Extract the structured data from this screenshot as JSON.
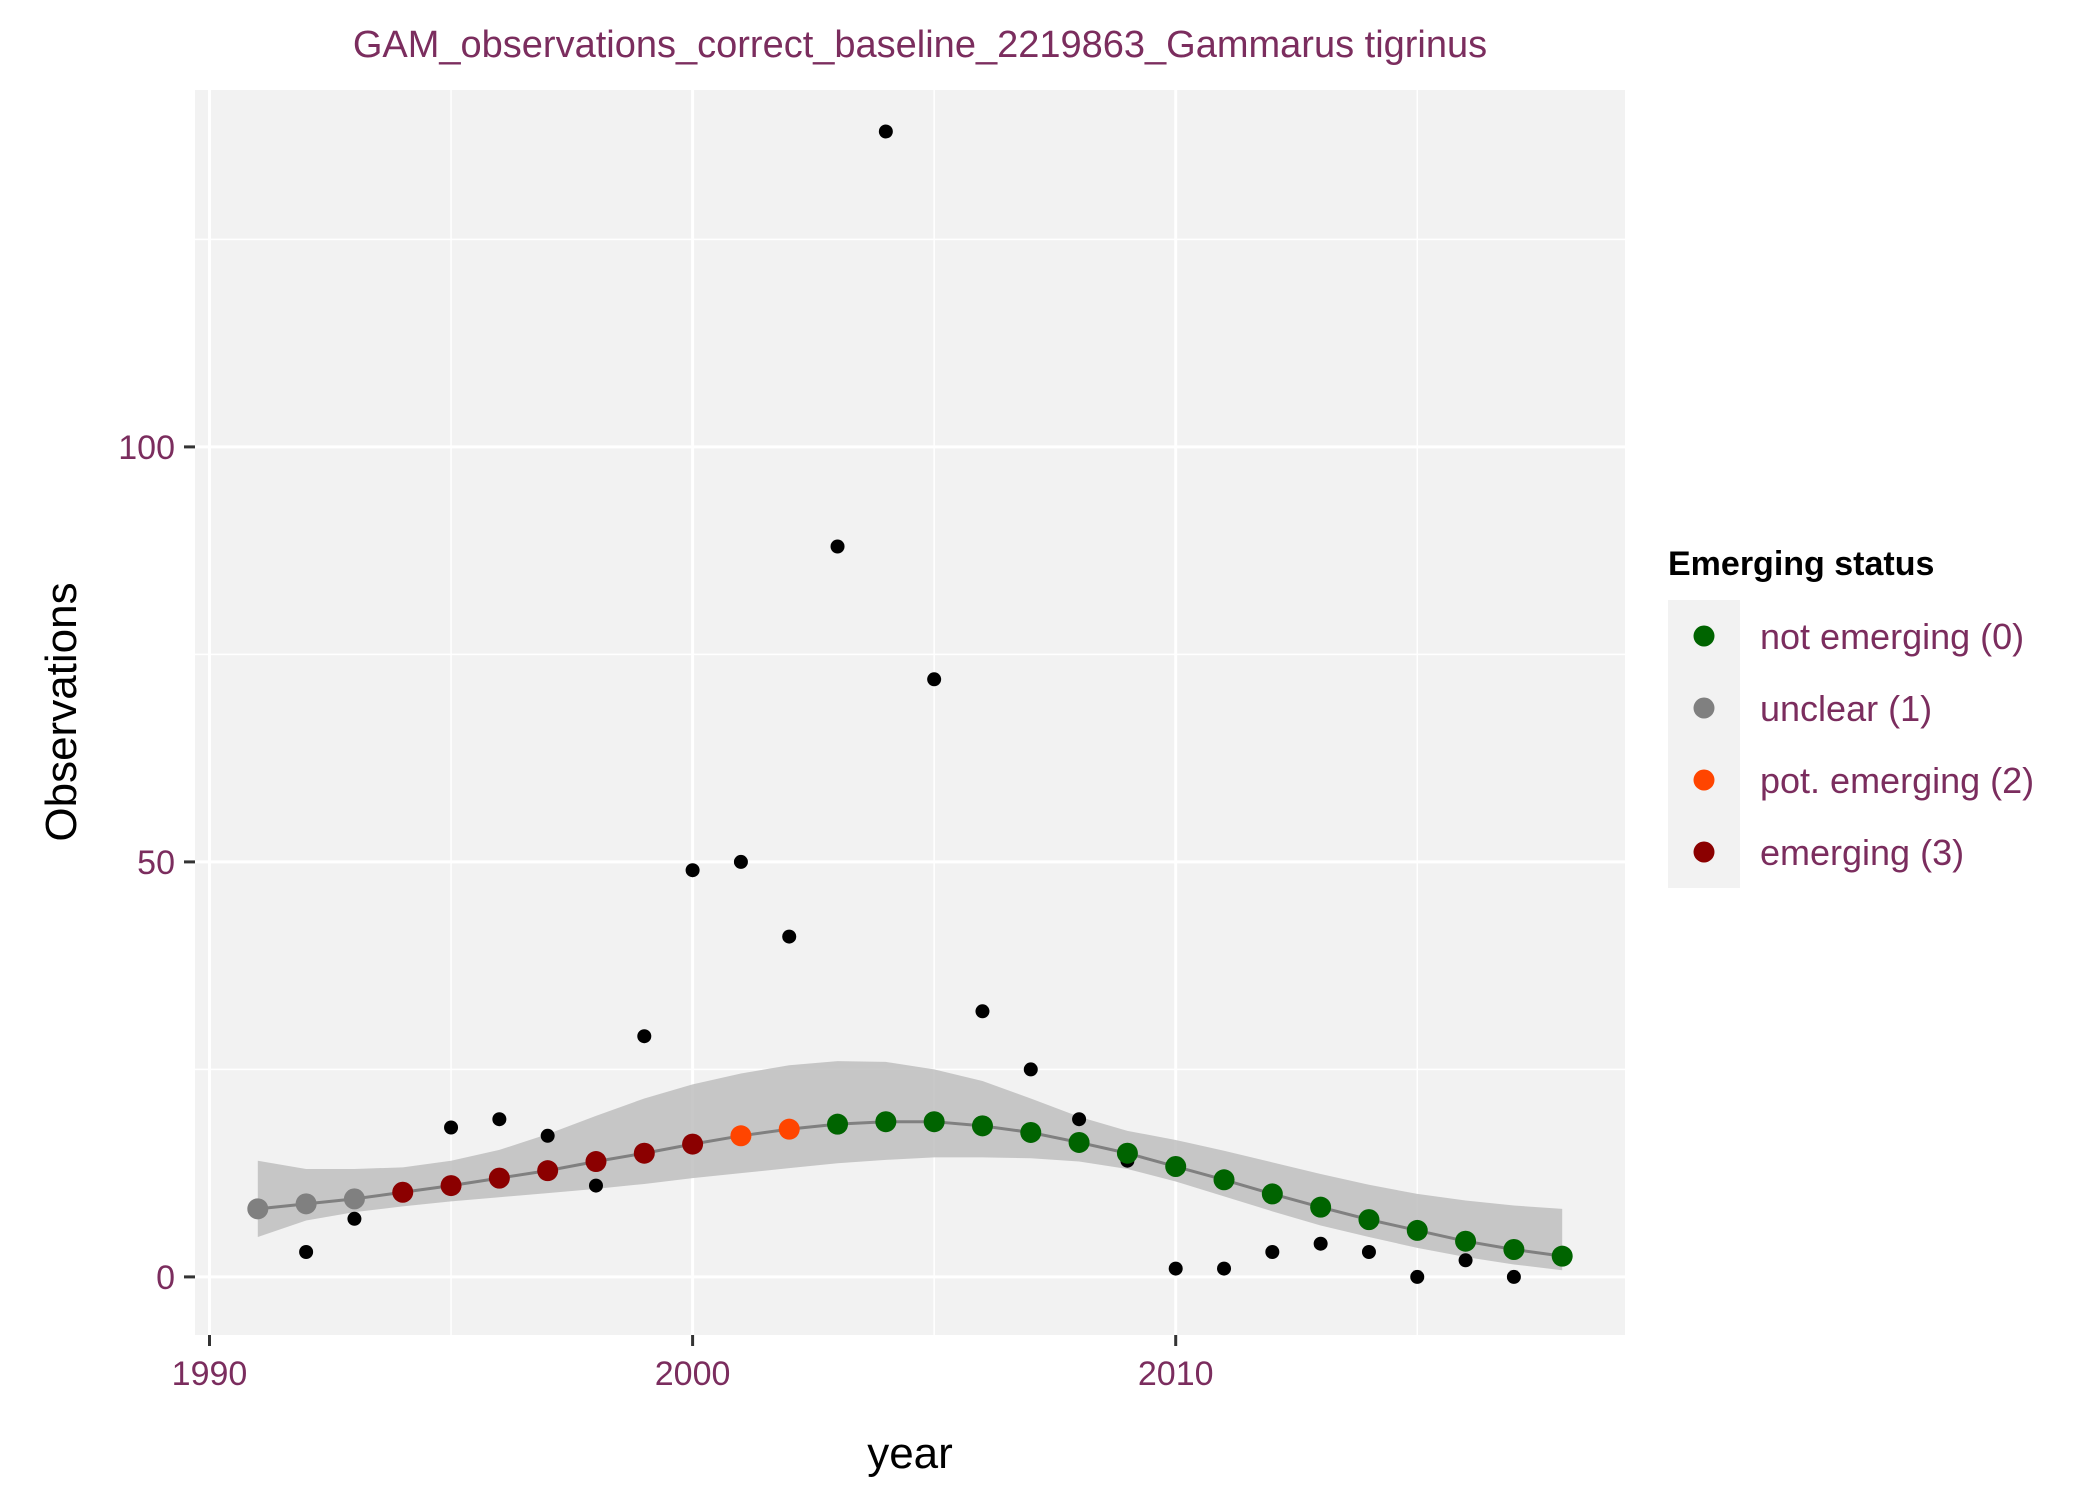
{
  "chart_data": {
    "type": "scatter",
    "title": "GAM_observations_correct_baseline_2219863_Gammarus tigrinus",
    "xlabel": "year",
    "ylabel": "Observations",
    "xlim": [
      1989.7,
      2019.3
    ],
    "ylim": [
      -7,
      143
    ],
    "x_ticks": [
      1990,
      2000,
      2010
    ],
    "x_minor": [
      1995,
      2005,
      2015
    ],
    "y_ticks": [
      0,
      50,
      100
    ],
    "y_minor": [
      25,
      75,
      125
    ],
    "grid": true,
    "legend_position": "right",
    "legend": {
      "title": "Emerging status",
      "entries": [
        {
          "label": "not emerging (0)",
          "color": "#006400"
        },
        {
          "label": "unclear (1)",
          "color": "#808080"
        },
        {
          "label": "pot. emerging (2)",
          "color": "#FF4500"
        },
        {
          "label": "emerging (3)",
          "color": "#8B0000"
        }
      ]
    },
    "status_colors": {
      "0": "#006400",
      "1": "#808080",
      "2": "#FF4500",
      "3": "#8B0000"
    },
    "observed_points": {
      "x": [
        1991,
        1992,
        1993,
        1994,
        1995,
        1996,
        1997,
        1998,
        1999,
        2000,
        2001,
        2002,
        2003,
        2004,
        2005,
        2006,
        2007,
        2008,
        2009,
        2010,
        2011,
        2012,
        2013,
        2014,
        2015,
        2016,
        2017
      ],
      "y": [
        8,
        3,
        7,
        10,
        18,
        19,
        17,
        11,
        29,
        49,
        50,
        41,
        88,
        138,
        72,
        32,
        25,
        19,
        14,
        1,
        1,
        3,
        4,
        3,
        0,
        2,
        0
      ]
    },
    "gam_fit": {
      "x": [
        1991,
        1992,
        1993,
        1994,
        1995,
        1996,
        1997,
        1998,
        1999,
        2000,
        2001,
        2002,
        2003,
        2004,
        2005,
        2006,
        2007,
        2008,
        2009,
        2010,
        2011,
        2012,
        2013,
        2014,
        2015,
        2016,
        2017,
        2018
      ],
      "y": [
        8.2,
        8.8,
        9.4,
        10.2,
        11.0,
        11.9,
        12.8,
        13.9,
        14.9,
        16.0,
        17.0,
        17.8,
        18.4,
        18.7,
        18.7,
        18.2,
        17.4,
        16.2,
        14.9,
        13.3,
        11.7,
        10.0,
        8.4,
        6.9,
        5.6,
        4.3,
        3.3,
        2.5
      ],
      "status": [
        1,
        1,
        1,
        3,
        3,
        3,
        3,
        3,
        3,
        3,
        2,
        2,
        0,
        0,
        0,
        0,
        0,
        0,
        0,
        0,
        0,
        0,
        0,
        0,
        0,
        0,
        0,
        0
      ]
    },
    "confidence_band": {
      "x": [
        1991,
        1992,
        1993,
        1994,
        1995,
        1996,
        1997,
        1998,
        1999,
        2000,
        2001,
        2002,
        2003,
        2004,
        2005,
        2006,
        2007,
        2008,
        2009,
        2010,
        2011,
        2012,
        2013,
        2014,
        2015,
        2016,
        2017,
        2018
      ],
      "lower": [
        4.8,
        6.8,
        7.8,
        8.5,
        9.1,
        9.6,
        10.1,
        10.6,
        11.2,
        11.9,
        12.5,
        13.1,
        13.7,
        14.1,
        14.4,
        14.4,
        14.3,
        13.9,
        13.0,
        11.5,
        9.7,
        7.9,
        6.2,
        4.8,
        3.5,
        2.4,
        1.5,
        0.8
      ],
      "upper": [
        14.0,
        13.0,
        13.0,
        13.2,
        14.0,
        15.3,
        17.2,
        19.4,
        21.5,
        23.2,
        24.5,
        25.5,
        26.0,
        25.9,
        25.0,
        23.6,
        21.5,
        19.3,
        17.6,
        16.5,
        15.2,
        13.8,
        12.4,
        11.1,
        10.0,
        9.2,
        8.6,
        8.2
      ]
    }
  },
  "colors": {
    "panel_bg": "#F2F2F2",
    "grid": "#FFFFFF",
    "band": "#BEBEBE",
    "fit_line": "#808080",
    "observed_point": "#000000",
    "label_text": "#7B2D5E",
    "axis_tick": "#333333"
  }
}
